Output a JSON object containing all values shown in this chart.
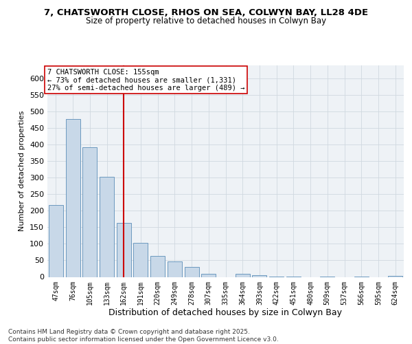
{
  "title": "7, CHATSWORTH CLOSE, RHOS ON SEA, COLWYN BAY, LL28 4DE",
  "subtitle": "Size of property relative to detached houses in Colwyn Bay",
  "xlabel": "Distribution of detached houses by size in Colwyn Bay",
  "ylabel": "Number of detached properties",
  "categories": [
    "47sqm",
    "76sqm",
    "105sqm",
    "133sqm",
    "162sqm",
    "191sqm",
    "220sqm",
    "249sqm",
    "278sqm",
    "307sqm",
    "335sqm",
    "364sqm",
    "393sqm",
    "422sqm",
    "451sqm",
    "480sqm",
    "509sqm",
    "537sqm",
    "566sqm",
    "595sqm",
    "624sqm"
  ],
  "values": [
    218,
    478,
    393,
    303,
    163,
    104,
    63,
    46,
    31,
    9,
    0,
    9,
    5,
    1,
    1,
    0,
    1,
    0,
    1,
    0,
    4
  ],
  "bar_color": "#c8d8e8",
  "bar_edge_color": "#5b8db8",
  "vline_x": 4,
  "vline_color": "#cc0000",
  "annotation_line1": "7 CHATSWORTH CLOSE: 155sqm",
  "annotation_line2": "← 73% of detached houses are smaller (1,331)",
  "annotation_line3": "27% of semi-detached houses are larger (489) →",
  "annotation_box_color": "#ffffff",
  "annotation_box_edge": "#cc0000",
  "ylim": [
    0,
    640
  ],
  "yticks": [
    0,
    50,
    100,
    150,
    200,
    250,
    300,
    350,
    400,
    450,
    500,
    550,
    600
  ],
  "grid_color": "#d0d8e0",
  "footer": "Contains HM Land Registry data © Crown copyright and database right 2025.\nContains public sector information licensed under the Open Government Licence v3.0.",
  "fig_bg_color": "#ffffff",
  "axes_bg_color": "#eef2f6"
}
